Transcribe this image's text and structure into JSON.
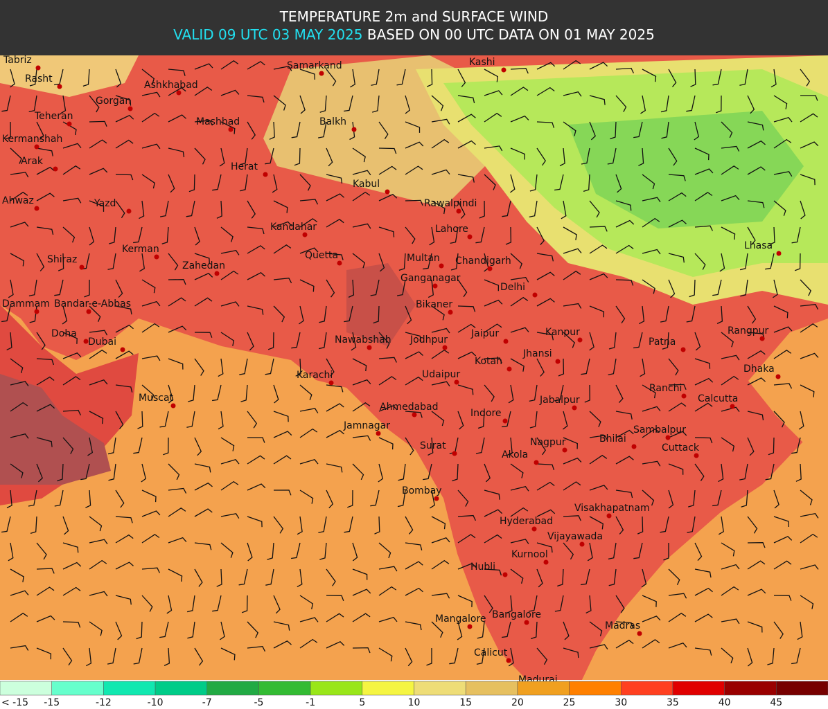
{
  "header": {
    "title": "TEMPERATURE 2m and SURFACE WIND",
    "valid": "VALID 09 UTC 03 MAY 2025",
    "based": "BASED ON 00 UTC DATA ON 01 MAY 2025"
  },
  "cities": [
    "Tabriz",
    "Rasht",
    "Gorgan",
    "Ashkhabad",
    "Teheran",
    "Mashhad",
    "Kermanshah",
    "Arak",
    "Herat",
    "Kabul",
    "Ahwaz",
    "Yazd",
    "Rawalpindi",
    "Kandahar",
    "Lahore",
    "Kerman",
    "Shiraz",
    "Quetta",
    "Multan",
    "Chandigarh",
    "Zahedan",
    "Ganganagar",
    "Delhi",
    "Dammam",
    "Bandar-e-Abbas",
    "Bikaner",
    "Doha",
    "Jaipur",
    "Kanpur",
    "Patna",
    "Rangpur",
    "Nawabshah",
    "Jodhpur",
    "Dubai",
    "Jhansi",
    "Kotah",
    "Dhaka",
    "Karachi",
    "Udaipur",
    "Ranchi",
    "Calcutta",
    "Jabalpur",
    "Muscat",
    "Ahmedabad",
    "Indore",
    "Jamnagar",
    "Sambalpur",
    "Surat",
    "Nagpur",
    "Bhilai",
    "Cuttack",
    "Akola",
    "Bombay",
    "Visakhapatnam",
    "Hyderabad",
    "Vijayawada",
    "Kurnool",
    "Hubli",
    "Bangalore",
    "Mangalore",
    "Madras",
    "Calicut",
    "Madurai",
    "Samarkand",
    "Balkh",
    "Kashi",
    "Lhasa"
  ],
  "legend": {
    "labels": [
      "< -15",
      "-15",
      "-12",
      "-10",
      "-7",
      "-5",
      "-1",
      "5",
      "10",
      "15",
      "20",
      "25",
      "30",
      "35",
      "40",
      "45"
    ],
    "colors": [
      "#ccffdd",
      "#66ffcc",
      "#11e8b0",
      "#00cc88",
      "#22aa44",
      "#33bb33",
      "#99e619",
      "#f5f542",
      "#eedd77",
      "#e6c060",
      "#f0a020",
      "#ff8000",
      "#ff4020",
      "#e00000",
      "#990000",
      "#770000"
    ]
  }
}
